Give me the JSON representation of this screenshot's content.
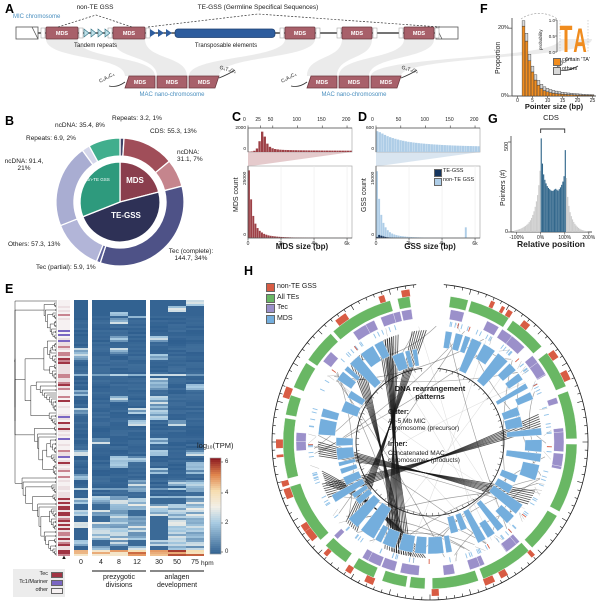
{
  "panels": {
    "a": "A",
    "b": "B",
    "c": "C",
    "d": "D",
    "e": "E",
    "f": "F",
    "g": "G",
    "h": "H"
  },
  "panel_a": {
    "mic_label": "MIC chromosome",
    "non_te_label": "non-TE GSS",
    "tandem_label": "Tandem repeats",
    "te_gss_label": "TE-GSS (Germline Specifical Sequences)",
    "te_label": "Transposable elements",
    "mds_label": "MDS",
    "mac_label": "MAC nano-chromosome",
    "telomere_left": "C₄A₄C₄",
    "telomere_right": "G₄T₄G₄",
    "colors": {
      "mds": "#a8606a",
      "mds_dark": "#6d3a42",
      "te": "#2e5d9e",
      "repeat": "#bfe0e8",
      "repeat_dark": "#2e6f80",
      "ribbon": "#e6e6e6",
      "mac_text": "#4a8fbf"
    }
  },
  "chart_data": [
    {
      "panel": "B",
      "type": "pie",
      "inner": {
        "segments": [
          {
            "label": "MDS",
            "value": 21,
            "color": "#8a3e4d"
          },
          {
            "label": "TE-GSS",
            "value": 48,
            "color": "#2e3156"
          },
          {
            "label": "non-TE GSS",
            "value": 31,
            "color": "#2e9a7d"
          }
        ]
      },
      "outer": {
        "segments": [
          {
            "label": "Repeats: 3.2, 1%",
            "value": 1,
            "color": "#3f4468"
          },
          {
            "label": "CDS: 55.3, 13%",
            "value": 13,
            "color": "#a04e59"
          },
          {
            "label": "ncDNA:\n31.1, 7%",
            "value": 7,
            "color": "#c5858d"
          },
          {
            "label": "Tec (complete):\n144.7, 34%",
            "value": 34,
            "color": "#4e5287"
          },
          {
            "label": "Tec (partial): 5.9, 1%",
            "value": 1,
            "color": "#5d619a"
          },
          {
            "label": "Others: 57.3, 13%",
            "value": 13,
            "color": "#b2b5d8"
          },
          {
            "label": "ncDNA: 91.4,\n21%",
            "value": 21,
            "color": "#a9add2"
          },
          {
            "label": "Repeats: 6.9, 2%",
            "value": 2,
            "color": "#d4d6ea"
          },
          {
            "label": "ncDNA: 35.4, 8%",
            "value": 8,
            "color": "#41ae8d"
          }
        ]
      }
    },
    {
      "panel": "C",
      "type": "bar",
      "color": "#9d4046",
      "ylabel": "MDS count",
      "xlabel": "MDS size (bp)",
      "top": {
        "x_ticks": [
          "0",
          "25",
          "50",
          "100",
          "150",
          "200"
        ],
        "x_tick_vals": [
          0,
          25,
          50,
          100,
          150,
          200
        ],
        "xmax": 210,
        "y_ticks": [
          "2000",
          "0"
        ],
        "ymax": 2000,
        "values": [
          20,
          45,
          110,
          320,
          980,
          1850,
          1400,
          760,
          470,
          340,
          270,
          235,
          210,
          195,
          185,
          178,
          172,
          166,
          160,
          156,
          152,
          149,
          146,
          143,
          141,
          139,
          137,
          135,
          133,
          131,
          130,
          128,
          127,
          126,
          125,
          124,
          123,
          122,
          121,
          120
        ]
      },
      "bottom": {
        "x_ticks": [
          "0",
          "2k",
          "4k",
          "6k"
        ],
        "x_tick_vals": [
          0,
          2000,
          4000,
          6000
        ],
        "xmax": 6300,
        "y_ticks": [
          "25000",
          "0"
        ],
        "ymax": 25000,
        "values": [
          24500,
          14000,
          8000,
          5200,
          3600,
          2600,
          2000,
          1500,
          1200,
          950,
          800,
          680,
          580,
          500,
          430,
          380,
          330,
          290,
          260,
          230,
          200,
          180,
          160,
          145,
          130,
          115,
          100,
          90,
          80,
          70,
          62,
          55,
          48,
          42,
          37,
          32,
          28,
          24,
          21,
          18,
          15,
          13,
          11,
          9,
          8,
          7,
          6,
          5
        ]
      }
    },
    {
      "panel": "D",
      "type": "bar",
      "color": "#aecde7",
      "ylabel": "GSS count",
      "xlabel": "GSS size (bp)",
      "legend": [
        {
          "label": "TE-GSS",
          "color": "#16355e"
        },
        {
          "label": "non-TE GSS",
          "color": "#aecde7"
        }
      ],
      "top": {
        "x_ticks": [
          "0",
          "50",
          "100",
          "150",
          "200"
        ],
        "x_tick_vals": [
          0,
          50,
          100,
          150,
          200
        ],
        "xmax": 210,
        "y_ticks": [
          "600",
          "0"
        ],
        "ymax": 650,
        "values": [
          615,
          585,
          545,
          505,
          468,
          438,
          412,
          390,
          368,
          348,
          332,
          316,
          302,
          291,
          280,
          271,
          262,
          254,
          247,
          240,
          234,
          228,
          223,
          218,
          213,
          208,
          204,
          200,
          197,
          193,
          190,
          187,
          185,
          182,
          180,
          178,
          176,
          174,
          172,
          170
        ]
      },
      "bottom": {
        "x_ticks": [
          "0",
          "2k",
          "4k",
          "6k"
        ],
        "x_tick_vals": [
          0,
          2000,
          4000,
          6000
        ],
        "xmax": 6300,
        "y_ticks": [
          "15000",
          "0"
        ],
        "ymax": 15500,
        "values": [
          15000,
          8800,
          5200,
          3400,
          2400,
          1750,
          1300,
          1000,
          800,
          650,
          540,
          450,
          380,
          325,
          280,
          245,
          215,
          190,
          170,
          152,
          137,
          124,
          112,
          102,
          93,
          85,
          78,
          72,
          66,
          61,
          57,
          53,
          49,
          46,
          43,
          40,
          38,
          36,
          34,
          32,
          30,
          2400,
          28,
          26,
          25,
          24,
          23,
          22
        ],
        "values_te": [
          250,
          700,
          520,
          360,
          240,
          160,
          110,
          75,
          50,
          35,
          25,
          18,
          12,
          8,
          6,
          4,
          3,
          2,
          2,
          1,
          1,
          1,
          0,
          0,
          0,
          0,
          0,
          0,
          0,
          0,
          0,
          0,
          0,
          0,
          0,
          0,
          0,
          0,
          0,
          0,
          0,
          0,
          0,
          0,
          0,
          0,
          0,
          0
        ]
      }
    },
    {
      "panel": "F",
      "type": "bar",
      "stack": true,
      "ylabel": "Proportion",
      "xlabel": "Pointer size (bp)",
      "x_ticks": [
        "0",
        "5",
        "10",
        "15",
        "20",
        "25"
      ],
      "x_tick_vals": [
        0,
        5,
        10,
        15,
        20,
        25
      ],
      "y_ticks": [
        "20%",
        "0%"
      ],
      "ymax": 23,
      "x_start": 2,
      "series": [
        {
          "name": "contain 'TA'",
          "color": "#f08c1e",
          "values": [
            20.6,
            16.2,
            10.4,
            7.1,
            4.7,
            3.2,
            2.2,
            1.6,
            1.25,
            1.0,
            0.85,
            0.72,
            0.62,
            0.54,
            0.47,
            0.42,
            0.37,
            0.33,
            0.3,
            0.27,
            0.24,
            0.22,
            0.2,
            0.18
          ]
        },
        {
          "name": "others",
          "color": "#d9d9d9",
          "values": [
            1.6,
            2.3,
            1.9,
            1.7,
            1.55,
            1.4,
            1.25,
            1.1,
            1.0,
            0.9,
            0.8,
            0.72,
            0.65,
            0.58,
            0.52,
            0.47,
            0.42,
            0.38,
            0.34,
            0.31,
            0.28,
            0.25,
            0.23,
            0.21
          ]
        }
      ],
      "inset": {
        "ylabel": "probability",
        "y_ticks": [
          "1.0",
          "0.5",
          "0.0"
        ],
        "logo_letters": [
          "T",
          "A"
        ],
        "logo_color": "#f08c1e"
      }
    },
    {
      "panel": "G",
      "type": "bar",
      "ylabel": "Pointers (#)",
      "xlabel": "Relative position",
      "x_ticks": [
        "-100%",
        "0%",
        "100%",
        "200%"
      ],
      "x_tick_vals": [
        -100,
        0,
        100,
        200
      ],
      "y_ticks": [
        "500",
        "0"
      ],
      "ymax": 560,
      "bin_start": -110,
      "bin_width": 5,
      "annotation": "CDS",
      "highlight_range": [
        0,
        100
      ],
      "color_in": "#33688c",
      "color_out": "#cccccc",
      "values": [
        8,
        10,
        12,
        14,
        16,
        18,
        22,
        26,
        30,
        34,
        40,
        46,
        55,
        65,
        78,
        95,
        115,
        140,
        170,
        205,
        260,
        340,
        520,
        380,
        320,
        290,
        270,
        255,
        245,
        238,
        232,
        228,
        230,
        236,
        240,
        235,
        230,
        238,
        248,
        262,
        280,
        310,
        455,
        300,
        195,
        145,
        110,
        88,
        70,
        56,
        45,
        36,
        29,
        23,
        18,
        14,
        11,
        9,
        7,
        6,
        5
      ]
    },
    {
      "panel": "E",
      "type": "heatmap",
      "rows": 128,
      "seed": 7,
      "columns": [
        "0",
        "4",
        "8",
        "12",
        "30",
        "50",
        "75"
      ],
      "unit_label": "hpm",
      "group_labels": [
        "prezygotic\ndivisions",
        "anlagen\ndevelopment"
      ],
      "colorbar": {
        "title": "log₁₀(TPM)",
        "ticks": [
          "6",
          "4",
          "2",
          "0"
        ],
        "stops": [
          [
            0,
            "#2f5f8f"
          ],
          [
            2,
            "#a8cbe2"
          ],
          [
            3,
            "#f2efe7"
          ],
          [
            4,
            "#f6ddb0"
          ],
          [
            5,
            "#e0854d"
          ],
          [
            6,
            "#8f1d22"
          ]
        ]
      },
      "row_annotation_legend": [
        {
          "label": "Tec",
          "color": "#a03444"
        },
        {
          "label": "Tc1/Mariner",
          "color": "#7a66c2"
        },
        {
          "label": "other",
          "color": "#f6f1f2"
        }
      ]
    },
    {
      "panel": "H",
      "type": "circos",
      "seed": 11,
      "legend": [
        {
          "label": "non-TE GSS",
          "color": "#d85c44"
        },
        {
          "label": "All TEs",
          "color": "#69b764"
        },
        {
          "label": "Tec",
          "color": "#9b90ca"
        },
        {
          "label": "MDS",
          "color": "#74aedd"
        }
      ],
      "center_title": "DNA rearrangement\npatterns",
      "outer_heading": "Outer:",
      "outer_text": "A ~5 Mb MIC\nchromosome (precursor)",
      "inner_heading": "Inner:",
      "inner_text": "Concatenated MAC\nchromosomes (products)"
    }
  ]
}
